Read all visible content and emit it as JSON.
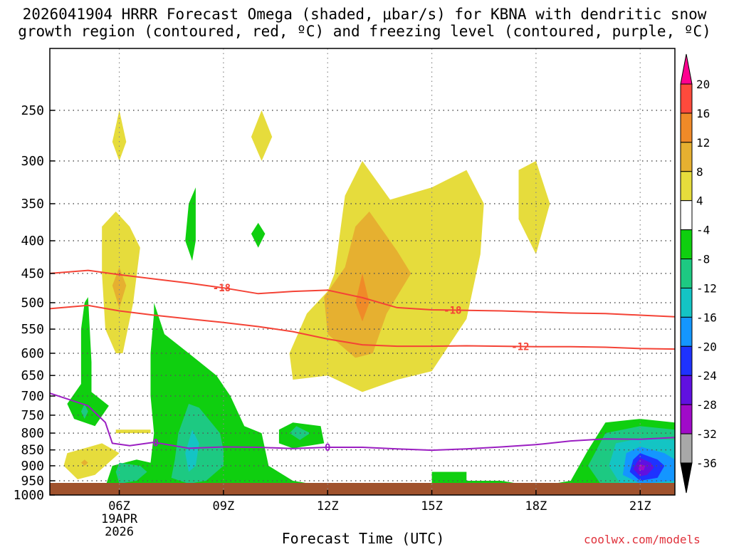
{
  "title_line1": "2026041904 HRRR Forecast Omega (shaded, μbar/s) for KBNA with dendritic snow",
  "title_line2": "growth region (contoured, red, ºC) and freezing level (contoured, purple, ºC)",
  "xlabel": "Forecast Time (UTC)",
  "credit": "coolwx.com/models",
  "chart_data": {
    "type": "heatmap",
    "title": "2026041904 HRRR Forecast Omega (shaded, μbar/s) for KBNA with dendritic snow growth region (contoured, red, ºC) and freezing level (contoured, purple, ºC)",
    "xlabel": "Forecast Time (UTC)",
    "ylabel": "",
    "x_ticks": [
      "06Z",
      "09Z",
      "12Z",
      "15Z",
      "18Z",
      "21Z"
    ],
    "x_tick_hours": [
      6,
      9,
      12,
      15,
      18,
      21
    ],
    "x_date_label": [
      "19APR",
      "2026"
    ],
    "xlim": [
      4,
      22
    ],
    "y_ticks": [
      250,
      300,
      350,
      400,
      450,
      500,
      550,
      600,
      650,
      700,
      750,
      800,
      850,
      900,
      950,
      1000
    ],
    "ylim": [
      1000,
      200
    ],
    "y_scale": "log-pressure",
    "grid": true,
    "colorbar": {
      "labels": [
        "20",
        "16",
        "12",
        "8",
        "4",
        "-4",
        "-8",
        "-12",
        "-16",
        "-20",
        "-24",
        "-28",
        "-32",
        "-36"
      ],
      "bounds": [
        20,
        16,
        12,
        8,
        4,
        -4,
        -8,
        -12,
        -16,
        -20,
        -24,
        -28,
        -32,
        -36
      ],
      "colors": [
        "#ff0090",
        "#ff4a3c",
        "#f08a28",
        "#e6b030",
        "#e6dc3c",
        "#ffffff",
        "#0fcf0f",
        "#1dc982",
        "#14c4c4",
        "#1496ff",
        "#1e32ff",
        "#6010e0",
        "#a00ac8",
        "#a8a8a8",
        "#000000"
      ]
    },
    "contours": [
      {
        "name": "-18",
        "color": "#f44336",
        "points": [
          [
            4,
            450
          ],
          [
            5.1,
            445
          ],
          [
            6,
            452
          ],
          [
            7,
            459
          ],
          [
            8,
            466
          ],
          [
            9,
            474
          ],
          [
            10,
            484
          ],
          [
            11,
            480
          ],
          [
            12,
            478
          ],
          [
            13,
            491
          ],
          [
            14,
            509
          ],
          [
            15,
            513
          ],
          [
            16,
            514
          ],
          [
            17,
            515
          ],
          [
            18,
            517
          ],
          [
            19,
            519
          ],
          [
            20,
            520
          ],
          [
            21,
            523
          ],
          [
            22,
            526
          ]
        ]
      },
      {
        "name": "-12",
        "color": "#f44336",
        "points": [
          [
            4,
            511
          ],
          [
            5.1,
            505
          ],
          [
            6,
            515
          ],
          [
            7,
            523
          ],
          [
            8,
            530
          ],
          [
            9,
            537
          ],
          [
            10,
            545
          ],
          [
            11,
            555
          ],
          [
            12,
            570
          ],
          [
            13,
            582
          ],
          [
            14,
            585
          ],
          [
            15,
            585
          ],
          [
            16,
            584
          ],
          [
            17,
            585
          ],
          [
            18,
            586
          ],
          [
            19,
            586
          ],
          [
            20,
            587
          ],
          [
            21,
            590
          ],
          [
            22,
            591
          ]
        ]
      },
      {
        "name": "0",
        "color": "#9b1ec2",
        "points": [
          [
            4,
            693
          ],
          [
            5.1,
            725
          ],
          [
            5.6,
            770
          ],
          [
            5.8,
            830
          ],
          [
            6.3,
            837
          ],
          [
            7,
            827
          ],
          [
            8,
            845
          ],
          [
            9,
            841
          ],
          [
            10,
            842
          ],
          [
            11,
            846
          ],
          [
            12,
            842
          ],
          [
            13,
            842
          ],
          [
            14,
            847
          ],
          [
            15,
            851
          ],
          [
            16,
            847
          ],
          [
            17,
            841
          ],
          [
            18,
            834
          ],
          [
            19,
            823
          ],
          [
            20,
            817
          ],
          [
            21,
            818
          ],
          [
            22,
            813
          ]
        ]
      }
    ],
    "shaded_regions": [
      {
        "omega": 4,
        "color": "#e6dc3c",
        "points": [
          [
            6,
            250
          ],
          [
            6.2,
            280
          ],
          [
            6,
            300
          ],
          [
            5.8,
            280
          ]
        ]
      },
      {
        "omega": 4,
        "color": "#e6dc3c",
        "points": [
          [
            10.1,
            250
          ],
          [
            10.4,
            275
          ],
          [
            10.1,
            300
          ],
          [
            9.8,
            275
          ]
        ]
      },
      {
        "omega": 4,
        "color": "#e6dc3c",
        "points": [
          [
            5.5,
            380
          ],
          [
            5.9,
            360
          ],
          [
            6.3,
            380
          ],
          [
            6.6,
            410
          ],
          [
            6.4,
            500
          ],
          [
            6.1,
            600
          ],
          [
            5.9,
            600
          ],
          [
            5.6,
            550
          ],
          [
            5.5,
            450
          ]
        ]
      },
      {
        "omega": 8,
        "color": "#e6b030",
        "points": [
          [
            6,
            440
          ],
          [
            6.2,
            470
          ],
          [
            6,
            510
          ],
          [
            5.8,
            470
          ]
        ]
      },
      {
        "omega": 4,
        "color": "#e6dc3c",
        "points": [
          [
            12.2,
            450
          ],
          [
            12.5,
            340
          ],
          [
            13,
            300
          ],
          [
            13.8,
            345
          ],
          [
            15,
            330
          ],
          [
            16,
            310
          ],
          [
            16.5,
            350
          ],
          [
            16.4,
            420
          ],
          [
            16,
            530
          ],
          [
            15,
            640
          ],
          [
            14,
            660
          ],
          [
            13,
            690
          ],
          [
            12,
            650
          ],
          [
            11,
            660
          ],
          [
            10.9,
            600
          ],
          [
            11.4,
            520
          ],
          [
            12,
            480
          ]
        ]
      },
      {
        "omega": 8,
        "color": "#e6b030",
        "points": [
          [
            12.8,
            380
          ],
          [
            13.2,
            360
          ],
          [
            14,
            415
          ],
          [
            14.4,
            450
          ],
          [
            13.7,
            520
          ],
          [
            13.3,
            600
          ],
          [
            12.8,
            610
          ],
          [
            12,
            560
          ],
          [
            11.9,
            490
          ],
          [
            12.5,
            440
          ]
        ]
      },
      {
        "omega": 12,
        "color": "#f08a28",
        "points": [
          [
            13,
            450
          ],
          [
            13.2,
            500
          ],
          [
            13,
            535
          ],
          [
            12.8,
            500
          ]
        ]
      },
      {
        "omega": 4,
        "color": "#e6dc3c",
        "points": [
          [
            18,
            300
          ],
          [
            18.4,
            350
          ],
          [
            18,
            420
          ],
          [
            17.5,
            370
          ],
          [
            17.5,
            310
          ]
        ]
      },
      {
        "omega": 4,
        "color": "#e6dc3c",
        "points": [
          [
            5.9,
            790
          ],
          [
            6.9,
            790
          ],
          [
            6.9,
            800
          ],
          [
            5.9,
            800
          ]
        ]
      },
      {
        "omega": 4,
        "color": "#e6dc3c",
        "points": [
          [
            4.5,
            860
          ],
          [
            5.5,
            830
          ],
          [
            6,
            860
          ],
          [
            5.3,
            930
          ],
          [
            4.8,
            945
          ],
          [
            4.4,
            900
          ]
        ]
      },
      {
        "omega": 8,
        "color": "#e6b030",
        "points": [
          [
            5,
            880
          ],
          [
            5.1,
            890
          ],
          [
            5,
            900
          ],
          [
            4.9,
            890
          ]
        ]
      },
      {
        "omega": -4,
        "color": "#0fcf0f",
        "points": [
          [
            5,
            500
          ],
          [
            5.1,
            490
          ],
          [
            5.2,
            620
          ],
          [
            5.2,
            690
          ],
          [
            5.7,
            725
          ],
          [
            5.3,
            780
          ],
          [
            4.7,
            760
          ],
          [
            4.5,
            720
          ],
          [
            4.9,
            670
          ],
          [
            4.9,
            550
          ]
        ]
      },
      {
        "omega": -8,
        "color": "#1dc982",
        "points": [
          [
            5,
            720
          ],
          [
            5.1,
            740
          ],
          [
            5,
            760
          ],
          [
            4.9,
            740
          ]
        ]
      },
      {
        "omega": -4,
        "color": "#0fcf0f",
        "points": [
          [
            8,
            350
          ],
          [
            8.2,
            330
          ],
          [
            8.2,
            400
          ],
          [
            8.1,
            430
          ],
          [
            7.9,
            400
          ]
        ]
      },
      {
        "omega": -4,
        "color": "#0fcf0f",
        "points": [
          [
            10,
            375
          ],
          [
            10.2,
            390
          ],
          [
            10,
            410
          ],
          [
            9.8,
            390
          ]
        ]
      },
      {
        "omega": -4,
        "color": "#0fcf0f",
        "points": [
          [
            7,
            500
          ],
          [
            7.3,
            560
          ],
          [
            8,
            600
          ],
          [
            8.8,
            650
          ],
          [
            9.2,
            700
          ],
          [
            9.6,
            780
          ],
          [
            10.1,
            800
          ],
          [
            10.3,
            900
          ],
          [
            11,
            950
          ],
          [
            12,
            970
          ],
          [
            12.5,
            975
          ],
          [
            11,
            985
          ],
          [
            10,
            990
          ],
          [
            9,
            985
          ],
          [
            8,
            990
          ],
          [
            7,
            995
          ],
          [
            6,
            990
          ],
          [
            5.6,
            970
          ],
          [
            5.8,
            900
          ],
          [
            6.5,
            880
          ],
          [
            6.9,
            890
          ],
          [
            7,
            800
          ],
          [
            6.9,
            700
          ],
          [
            6.9,
            600
          ],
          [
            7,
            520
          ]
        ]
      },
      {
        "omega": -8,
        "color": "#1dc982",
        "points": [
          [
            8,
            720
          ],
          [
            8.3,
            730
          ],
          [
            8.9,
            800
          ],
          [
            9,
            850
          ],
          [
            9,
            900
          ],
          [
            8.5,
            950
          ],
          [
            8,
            960
          ],
          [
            7.5,
            940
          ],
          [
            7.6,
            880
          ],
          [
            7.7,
            800
          ]
        ]
      },
      {
        "omega": -8,
        "color": "#1dc982",
        "points": [
          [
            6,
            890
          ],
          [
            6.6,
            900
          ],
          [
            6.8,
            920
          ],
          [
            6.5,
            950
          ],
          [
            6,
            960
          ],
          [
            5.9,
            920
          ]
        ]
      },
      {
        "omega": -12,
        "color": "#14c4c4",
        "points": [
          [
            8.1,
            790
          ],
          [
            8.3,
            830
          ],
          [
            8.2,
            900
          ],
          [
            8,
            920
          ],
          [
            7.9,
            860
          ]
        ]
      },
      {
        "omega": -4,
        "color": "#0fcf0f",
        "points": [
          [
            11,
            770
          ],
          [
            11.8,
            780
          ],
          [
            11.9,
            830
          ],
          [
            11,
            845
          ],
          [
            10.6,
            830
          ],
          [
            10.6,
            790
          ]
        ]
      },
      {
        "omega": -8,
        "color": "#1dc982",
        "points": [
          [
            11.1,
            780
          ],
          [
            11.5,
            800
          ],
          [
            11.2,
            820
          ],
          [
            10.9,
            800
          ]
        ]
      },
      {
        "omega": -4,
        "color": "#0fcf0f",
        "points": [
          [
            15,
            920
          ],
          [
            16,
            920
          ],
          [
            16,
            950
          ],
          [
            17,
            950
          ],
          [
            18,
            970
          ],
          [
            19,
            950
          ],
          [
            19.5,
            850
          ],
          [
            20,
            770
          ],
          [
            21,
            760
          ],
          [
            22,
            770
          ],
          [
            22,
            995
          ],
          [
            19,
            995
          ],
          [
            17,
            995
          ],
          [
            16,
            995
          ],
          [
            16,
            970
          ],
          [
            15,
            970
          ]
        ]
      },
      {
        "omega": -8,
        "color": "#1dc982",
        "points": [
          [
            20,
            800
          ],
          [
            21,
            780
          ],
          [
            22,
            790
          ],
          [
            22,
            985
          ],
          [
            20,
            985
          ],
          [
            19.5,
            900
          ]
        ]
      },
      {
        "omega": -12,
        "color": "#14c4c4",
        "points": [
          [
            20.3,
            830
          ],
          [
            21,
            815
          ],
          [
            22,
            820
          ],
          [
            22,
            975
          ],
          [
            20.5,
            975
          ],
          [
            20.1,
            900
          ]
        ]
      },
      {
        "omega": -16,
        "color": "#1496ff",
        "points": [
          [
            20.6,
            860
          ],
          [
            21,
            840
          ],
          [
            21.7,
            860
          ],
          [
            22,
            880
          ],
          [
            22,
            950
          ],
          [
            21,
            960
          ],
          [
            20.5,
            930
          ]
        ]
      },
      {
        "omega": -20,
        "color": "#1e32ff",
        "points": [
          [
            20.8,
            880
          ],
          [
            21,
            860
          ],
          [
            21.5,
            880
          ],
          [
            21.7,
            900
          ],
          [
            21.5,
            940
          ],
          [
            21,
            950
          ],
          [
            20.7,
            920
          ]
        ]
      },
      {
        "omega": -24,
        "color": "#6010e0",
        "points": [
          [
            20.9,
            890
          ],
          [
            21,
            875
          ],
          [
            21.3,
            890
          ],
          [
            21.4,
            905
          ],
          [
            21.2,
            930
          ],
          [
            21,
            935
          ],
          [
            20.8,
            910
          ]
        ]
      },
      {
        "omega": -28,
        "color": "#a00ac8",
        "points": [
          [
            21,
            895
          ],
          [
            21.15,
            900
          ],
          [
            21.1,
            915
          ],
          [
            20.95,
            912
          ]
        ]
      }
    ],
    "surface_color": "#a0522d"
  }
}
